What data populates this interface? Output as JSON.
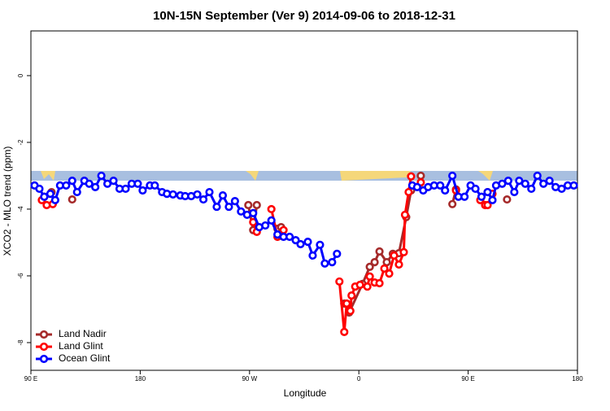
{
  "chart_data": {
    "type": "line",
    "title": "10N-15N September (Ver 9)   2014-09-06 to 2018-12-31",
    "x_label": "Longitude",
    "y_label": "XCO2 - MLO trend (ppm)",
    "xlim": [
      90,
      540
    ],
    "ylim": [
      -8.83,
      1.34
    ],
    "xticks": [
      {
        "value": 90,
        "label": "90 E"
      },
      {
        "value": 180,
        "label": "180"
      },
      {
        "value": 270,
        "label": "90 W"
      },
      {
        "value": 360,
        "label": "0"
      },
      {
        "value": 450,
        "label": "90 E"
      },
      {
        "value": 540,
        "label": "180"
      }
    ],
    "yticks": [
      0,
      -2,
      -4,
      -6,
      -8
    ],
    "legend": "bottom-left",
    "series": [
      {
        "name": "Land Nadir",
        "color": "#a52a2a",
        "x": [
          101,
          107,
          null,
          124,
          null,
          269,
          273,
          276,
          null,
          293,
          296,
          null,
          348,
          352,
          363,
          369,
          373,
          377,
          383,
          388,
          393,
          399,
          403,
          null,
          411,
          null,
          437,
          440,
          null,
          466,
          null,
          482
        ],
        "values": [
          -3.63,
          -3.49,
          null,
          -3.71,
          null,
          -3.88,
          -4.63,
          -3.88,
          null,
          -4.59,
          -4.54,
          null,
          -6.83,
          -7.1,
          -6.24,
          -5.73,
          -5.59,
          -5.27,
          -5.59,
          -5.34,
          -5.32,
          -4.24,
          -3.44,
          null,
          -3.0,
          null,
          -3.85,
          -3.41,
          null,
          -3.49,
          null,
          -3.71
        ]
      },
      {
        "name": "Land Glint",
        "color": "#ff0000",
        "x": [
          99,
          103,
          108,
          null,
          273,
          276,
          null,
          288,
          293,
          298,
          null,
          344,
          348,
          350,
          353,
          354,
          357,
          361,
          367,
          369,
          373,
          377,
          381,
          385,
          389,
          393,
          397,
          398,
          401,
          403,
          null,
          411,
          null,
          440,
          null,
          460,
          464,
          466,
          470
        ],
        "values": [
          -3.73,
          -3.88,
          -3.85,
          null,
          -4.39,
          -4.68,
          null,
          -4.0,
          -4.83,
          -4.63,
          null,
          -6.17,
          -7.68,
          -6.83,
          -7.05,
          -6.59,
          -6.32,
          -6.27,
          -6.32,
          -6.02,
          -6.2,
          -6.22,
          -5.78,
          -5.93,
          -5.39,
          -5.66,
          -5.29,
          -4.17,
          -3.49,
          -3.02,
          null,
          -3.2,
          null,
          -3.44,
          null,
          -3.73,
          -3.88,
          -3.88,
          -3.54
        ]
      },
      {
        "name": "Ocean Glint",
        "color": "#0000ff",
        "x": [
          93,
          97,
          101,
          106,
          110,
          114,
          119,
          124,
          128,
          134,
          138,
          143,
          148,
          153,
          158,
          163,
          168,
          173,
          178,
          182,
          188,
          192,
          198,
          202,
          207,
          213,
          217,
          222,
          227,
          232,
          237,
          243,
          248,
          253,
          258,
          263,
          268,
          273,
          278,
          283,
          288,
          293,
          298,
          303,
          308,
          312,
          318,
          322,
          328,
          332,
          338,
          342,
          null,
          404,
          408,
          413,
          417,
          422,
          427,
          431,
          437,
          442,
          447,
          452,
          456,
          461,
          466,
          470,
          473,
          478,
          483,
          488,
          492,
          497,
          502,
          507,
          512,
          517,
          522,
          527,
          532,
          537
        ],
        "values": [
          -3.29,
          -3.39,
          -3.63,
          -3.54,
          -3.73,
          -3.29,
          -3.29,
          -3.15,
          -3.49,
          -3.15,
          -3.24,
          -3.34,
          -3.0,
          -3.24,
          -3.15,
          -3.39,
          -3.39,
          -3.24,
          -3.24,
          -3.44,
          -3.29,
          -3.29,
          -3.49,
          -3.54,
          -3.56,
          -3.59,
          -3.61,
          -3.61,
          -3.56,
          -3.71,
          -3.49,
          -3.93,
          -3.59,
          -3.93,
          -3.76,
          -4.07,
          -4.17,
          -4.12,
          -4.54,
          -4.49,
          -4.34,
          -4.76,
          -4.83,
          -4.83,
          -4.93,
          -5.05,
          -4.98,
          -5.39,
          -5.07,
          -5.63,
          -5.59,
          -5.34,
          null,
          -3.29,
          -3.34,
          -3.44,
          -3.34,
          -3.29,
          -3.29,
          -3.44,
          -3.0,
          -3.63,
          -3.63,
          -3.29,
          -3.39,
          -3.63,
          -3.49,
          -3.73,
          -3.29,
          -3.24,
          -3.15,
          -3.49,
          -3.15,
          -3.24,
          -3.39,
          -3.0,
          -3.24,
          -3.15,
          -3.34,
          -3.39,
          -3.29,
          -3.29
        ]
      }
    ]
  }
}
